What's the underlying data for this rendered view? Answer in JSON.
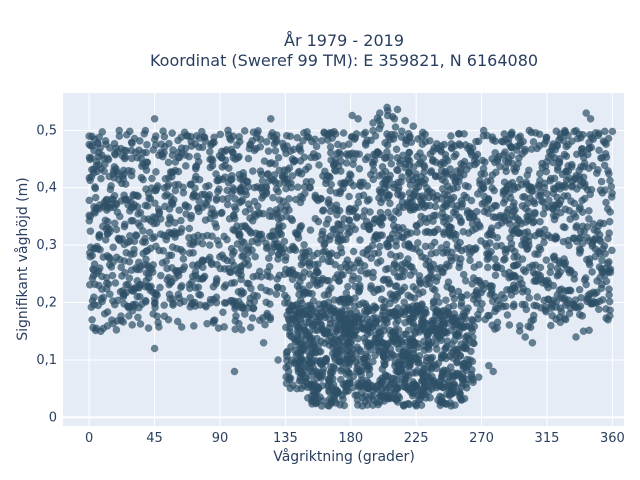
{
  "chart_data": {
    "type": "scatter",
    "title_line1": "År 1979 - 2019",
    "title_line2": "Koordinat (Sweref 99 TM): E 359821, N 6164080",
    "xlabel": "Vågriktning (grader)",
    "ylabel": "Signifikant våghöjd (m)",
    "xlim": [
      -18,
      368
    ],
    "ylim": [
      -0.015,
      0.565
    ],
    "xticks": [
      0,
      45,
      90,
      135,
      180,
      225,
      270,
      315,
      360
    ],
    "xtick_labels": [
      "0",
      "45",
      "90",
      "135",
      "180",
      "225",
      "270",
      "315",
      "360"
    ],
    "yticks": [
      0,
      0.1,
      0.2,
      0.3,
      0.4,
      0.5
    ],
    "ytick_labels": [
      "0",
      "0,1",
      "0,2",
      "0,3",
      "0,4",
      "0,5"
    ],
    "grid": true,
    "marker_color": "#2e5066",
    "background_color": "#e5ecf6",
    "point_regions": [
      {
        "x_range": [
          0,
          360
        ],
        "y_range": [
          0.19,
          0.5
        ],
        "density": "very high"
      },
      {
        "x_range": [
          0,
          360
        ],
        "y_range": [
          0.15,
          0.2
        ],
        "density": "scattered"
      },
      {
        "x_range": [
          135,
          265
        ],
        "y_range": [
          0.05,
          0.19
        ],
        "density": "high"
      },
      {
        "x_range": [
          150,
          260
        ],
        "y_range": [
          0.02,
          0.06
        ],
        "density": "scattered"
      },
      {
        "x_range": [
          180,
          225
        ],
        "y_range": [
          0.5,
          0.54
        ],
        "density": "sparse"
      }
    ],
    "sample_points": [
      {
        "x": 0,
        "y": 0.49
      },
      {
        "x": 2,
        "y": 0.17
      },
      {
        "x": 5,
        "y": 0.155
      },
      {
        "x": 8,
        "y": 0.15
      },
      {
        "x": 45,
        "y": 0.52
      },
      {
        "x": 45,
        "y": 0.12
      },
      {
        "x": 100,
        "y": 0.08
      },
      {
        "x": 125,
        "y": 0.52
      },
      {
        "x": 120,
        "y": 0.13
      },
      {
        "x": 130,
        "y": 0.1
      },
      {
        "x": 143,
        "y": 0.05
      },
      {
        "x": 160,
        "y": 0.02
      },
      {
        "x": 165,
        "y": 0.02
      },
      {
        "x": 170,
        "y": 0.025
      },
      {
        "x": 188,
        "y": 0.02
      },
      {
        "x": 205,
        "y": 0.54
      },
      {
        "x": 200,
        "y": 0.53
      },
      {
        "x": 210,
        "y": 0.52
      },
      {
        "x": 225,
        "y": 0.02
      },
      {
        "x": 240,
        "y": 0.03
      },
      {
        "x": 255,
        "y": 0.04
      },
      {
        "x": 262,
        "y": 0.1
      },
      {
        "x": 268,
        "y": 0.07
      },
      {
        "x": 275,
        "y": 0.09
      },
      {
        "x": 278,
        "y": 0.08
      },
      {
        "x": 300,
        "y": 0.14
      },
      {
        "x": 305,
        "y": 0.13
      },
      {
        "x": 335,
        "y": 0.14
      },
      {
        "x": 342,
        "y": 0.53
      },
      {
        "x": 345,
        "y": 0.52
      },
      {
        "x": 357,
        "y": 0.17
      }
    ]
  }
}
